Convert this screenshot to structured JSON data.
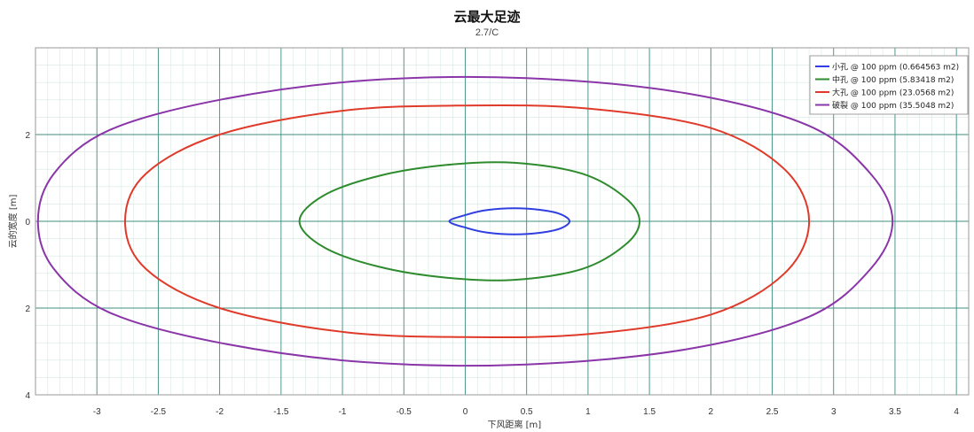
{
  "chart_data": {
    "type": "line",
    "title": "云最大足迹",
    "subtitle": "2.7/C",
    "xlabel": "下风距离 [m]",
    "ylabel": "云的宽度 [m]",
    "xlim": [
      -3.5,
      4.1
    ],
    "ylim": [
      -4,
      4
    ],
    "x_ticks": [
      -3,
      -2.5,
      -2,
      -1.5,
      -1,
      -0.5,
      0,
      0.5,
      1,
      1.5,
      2,
      2.5,
      3,
      3.5,
      4
    ],
    "x_tick_labels": [
      "-3",
      "-2.5",
      "-2",
      "-1.5",
      "-1",
      "-0.5",
      "0",
      "0.5",
      "1",
      "1.5",
      "2",
      "2.5",
      "3",
      "3.5",
      "4"
    ],
    "y_ticks": [
      2,
      0,
      -2,
      -4
    ],
    "y_tick_labels": [
      "2",
      "0",
      "2",
      "4"
    ],
    "grid": true,
    "legend_position": "top-right",
    "series": [
      {
        "name": "小孔 @ 100 ppm (0.664563 m2)",
        "color": "#2f3fe0",
        "points": [
          [
            0.85,
            0
          ],
          [
            0.78,
            0.16
          ],
          [
            0.62,
            0.26
          ],
          [
            0.4,
            0.3
          ],
          [
            0.18,
            0.26
          ],
          [
            0.02,
            0.16
          ],
          [
            -0.13,
            0
          ],
          [
            0.02,
            -0.16
          ],
          [
            0.18,
            -0.26
          ],
          [
            0.4,
            -0.3
          ],
          [
            0.62,
            -0.26
          ],
          [
            0.78,
            -0.16
          ],
          [
            0.85,
            0
          ]
        ]
      },
      {
        "name": "中孔 @ 100 ppm (5.83418 m2)",
        "color": "#2e8b2e",
        "points": [
          [
            1.42,
            0
          ],
          [
            1.3,
            0.55
          ],
          [
            0.95,
            1.1
          ],
          [
            0.4,
            1.35
          ],
          [
            -0.15,
            1.3
          ],
          [
            -0.7,
            1.05
          ],
          [
            -1.15,
            0.6
          ],
          [
            -1.35,
            0
          ],
          [
            -1.15,
            -0.6
          ],
          [
            -0.7,
            -1.05
          ],
          [
            -0.15,
            -1.3
          ],
          [
            0.4,
            -1.35
          ],
          [
            0.95,
            -1.1
          ],
          [
            1.3,
            -0.55
          ],
          [
            1.42,
            0
          ]
        ]
      },
      {
        "name": "大孔 @ 100 ppm (23.0568 m2)",
        "color": "#e03a2a",
        "points": [
          [
            2.8,
            0
          ],
          [
            2.6,
            1.2
          ],
          [
            2.0,
            2.15
          ],
          [
            1.0,
            2.6
          ],
          [
            0,
            2.67
          ],
          [
            -1.0,
            2.55
          ],
          [
            -2.0,
            2.0
          ],
          [
            -2.6,
            1.1
          ],
          [
            -2.77,
            0
          ],
          [
            -2.6,
            -1.1
          ],
          [
            -2.0,
            -2.0
          ],
          [
            -1.0,
            -2.55
          ],
          [
            0,
            -2.67
          ],
          [
            1.0,
            -2.6
          ],
          [
            2.0,
            -2.15
          ],
          [
            2.6,
            -1.2
          ],
          [
            2.8,
            0
          ]
        ]
      },
      {
        "name": "破裂 @ 100 ppm (35.5048 m2)",
        "color": "#8a35a8",
        "points": [
          [
            3.48,
            0
          ],
          [
            3.3,
            1.1
          ],
          [
            2.8,
            2.2
          ],
          [
            1.8,
            2.95
          ],
          [
            0.5,
            3.3
          ],
          [
            -0.8,
            3.25
          ],
          [
            -2.0,
            2.8
          ],
          [
            -2.9,
            2.1
          ],
          [
            -3.35,
            1.1
          ],
          [
            -3.48,
            0
          ],
          [
            -3.35,
            -1.1
          ],
          [
            -2.9,
            -2.1
          ],
          [
            -2.0,
            -2.8
          ],
          [
            -0.8,
            -3.25
          ],
          [
            0.5,
            -3.3
          ],
          [
            1.8,
            -2.95
          ],
          [
            2.8,
            -2.2
          ],
          [
            3.3,
            -1.1
          ],
          [
            3.48,
            0
          ]
        ]
      }
    ]
  }
}
